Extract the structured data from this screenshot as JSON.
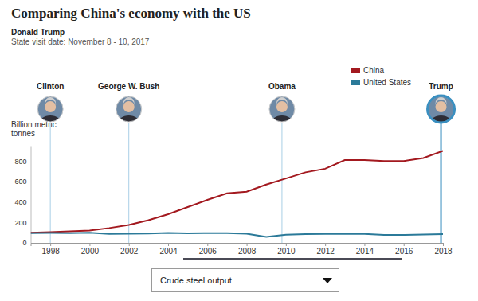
{
  "chart_data": {
    "type": "line",
    "title": "Comparing China's economy with the US",
    "subtitle": [
      "Donald Trump",
      "State visit date: November 8 - 10, 2017"
    ],
    "ylabel": "Billion metric tonnes",
    "dropdown": "Crude steel output",
    "x": [
      1997,
      1998,
      1999,
      2000,
      2001,
      2002,
      2003,
      2004,
      2005,
      2006,
      2007,
      2008,
      2009,
      2010,
      2011,
      2012,
      2013,
      2014,
      2015,
      2016,
      2017,
      2018
    ],
    "series": [
      {
        "name": "China",
        "color": "#a3191f",
        "values": [
          100,
          105,
          112,
          120,
          145,
          175,
          222,
          280,
          350,
          420,
          485,
          500,
          570,
          630,
          690,
          725,
          810,
          810,
          800,
          800,
          830,
          900
        ]
      },
      {
        "name": "United States",
        "color": "#2b7a99",
        "values": [
          95,
          97,
          95,
          100,
          88,
          90,
          92,
          98,
          93,
          96,
          96,
          90,
          58,
          80,
          85,
          88,
          87,
          87,
          78,
          78,
          82,
          86
        ]
      }
    ],
    "xlim": [
      1997,
      2018
    ],
    "ylim": [
      0,
      950
    ],
    "xticks": [
      1998,
      2000,
      2002,
      2004,
      2006,
      2008,
      2010,
      2012,
      2014,
      2016,
      2018
    ],
    "yticks": [
      0,
      200,
      400,
      600,
      800
    ],
    "annotations": [
      {
        "label": "Clinton",
        "x": 1998
      },
      {
        "label": "George W. Bush",
        "x": 2002
      },
      {
        "label": "Obama",
        "x": 2009.8
      },
      {
        "label": "Trump",
        "x": 2017.9
      }
    ],
    "legend": "top-right",
    "grid": false
  }
}
